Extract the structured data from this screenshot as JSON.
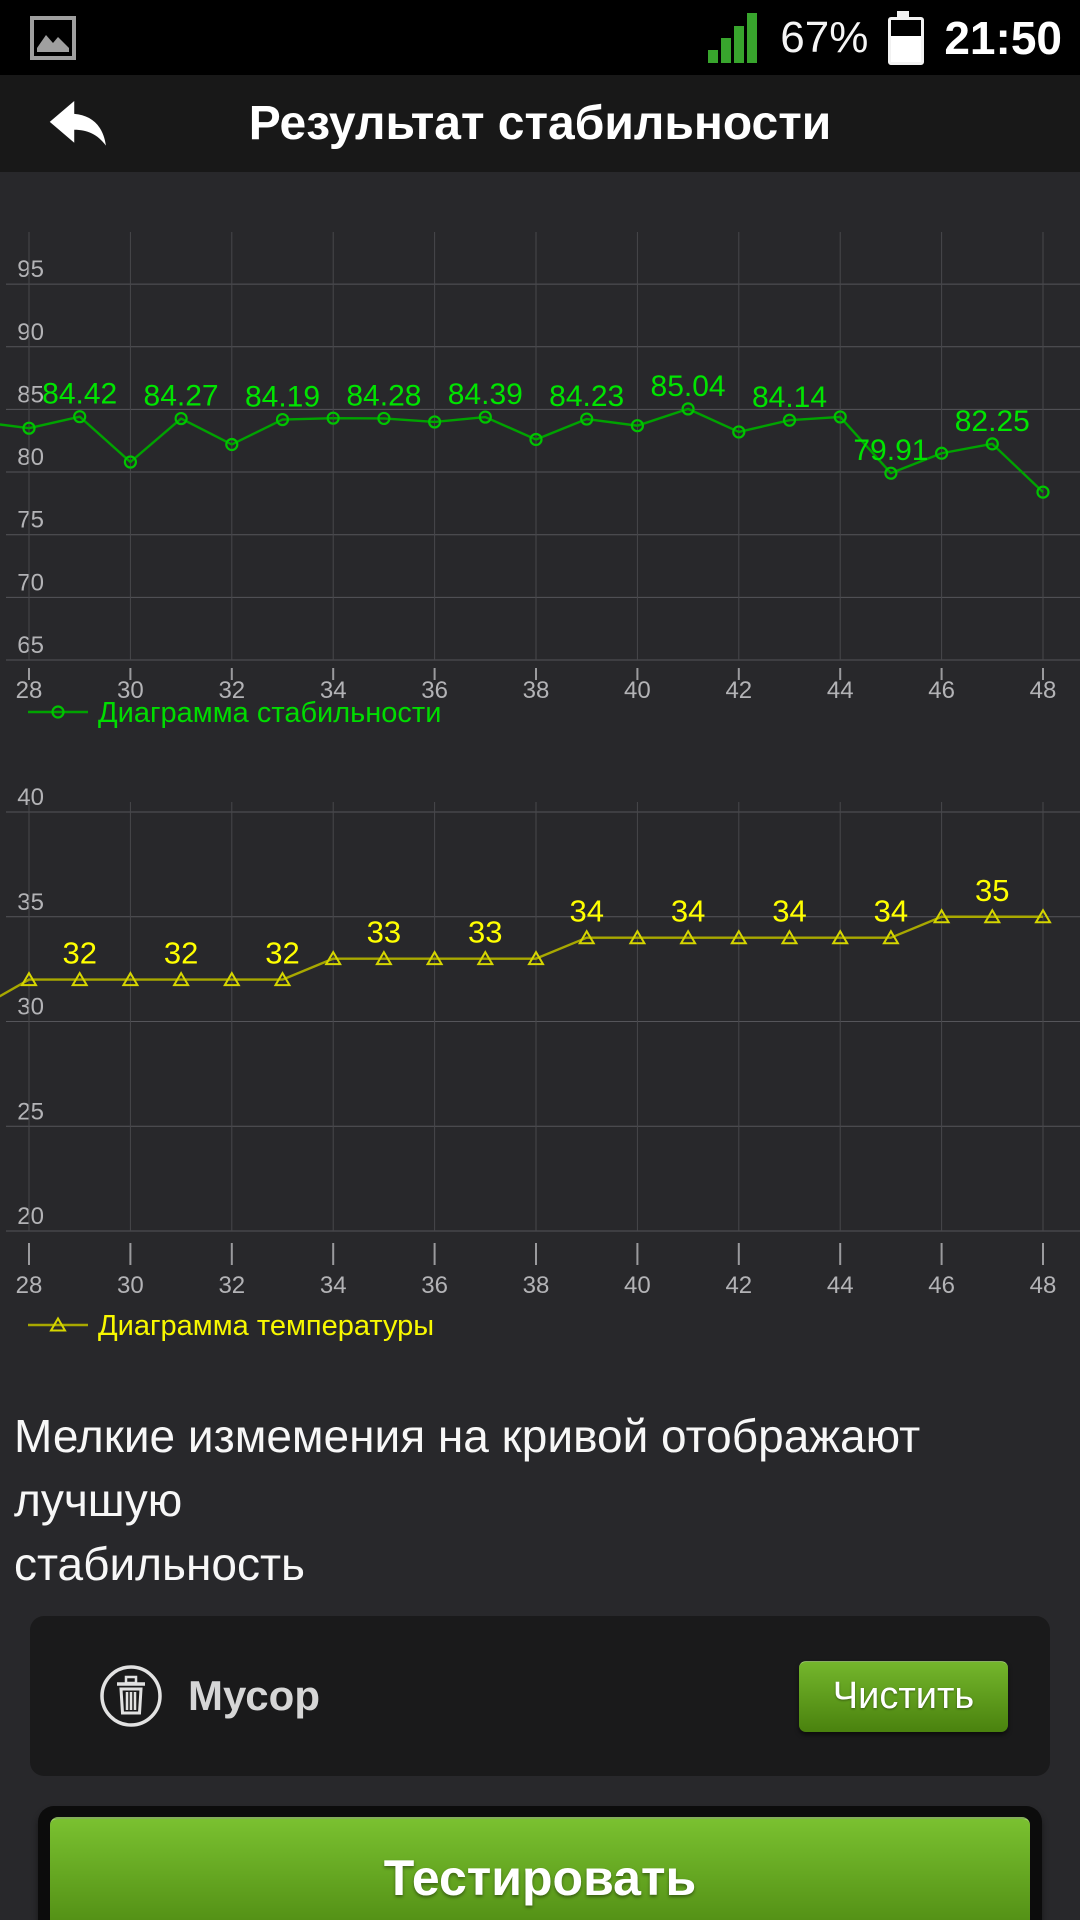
{
  "status_bar": {
    "time": "21:50",
    "battery_percent": "67%",
    "signal_color": "#38a52d",
    "icons": [
      "gallery-icon",
      "signal-strength-icon",
      "battery-icon"
    ]
  },
  "header": {
    "title": "Результат стабильности"
  },
  "chart_data": [
    {
      "type": "line",
      "legend": "Диаграмма стабильности",
      "x": [
        28,
        29,
        30,
        31,
        32,
        33,
        34,
        35,
        36,
        37,
        38,
        39,
        40,
        41,
        42,
        43,
        44,
        45,
        46,
        47,
        48
      ],
      "values": [
        83.5,
        84.42,
        80.8,
        84.27,
        82.2,
        84.19,
        84.3,
        84.28,
        84.0,
        84.39,
        82.6,
        84.23,
        83.7,
        85.04,
        83.2,
        84.14,
        84.4,
        79.91,
        81.5,
        82.25,
        78.4
      ],
      "point_labels": [
        null,
        "84.42",
        null,
        "84.27",
        null,
        "84.19",
        null,
        "84.28",
        null,
        "84.39",
        null,
        "84.23",
        null,
        "85.04",
        null,
        "84.14",
        null,
        "79.91",
        null,
        "82.25",
        null
      ],
      "edge_point": {
        "x": 27.42,
        "v": 83.8
      },
      "xticks": [
        28,
        30,
        32,
        34,
        36,
        38,
        40,
        42,
        44,
        46,
        48
      ],
      "yticks": [
        95,
        90,
        85,
        80,
        75,
        70,
        65
      ],
      "xlim": [
        28,
        48
      ],
      "ylim": [
        65,
        95
      ],
      "marker": "circle",
      "grid": true,
      "legend_position": "bottom-left",
      "line_color": "#00a300",
      "marker_color": "#00c400",
      "label_color": "#00e400",
      "legend_color": "#00dc00"
    },
    {
      "type": "line",
      "legend": "Диаграмма температуры",
      "x": [
        28,
        29,
        30,
        31,
        32,
        33,
        34,
        35,
        36,
        37,
        38,
        39,
        40,
        41,
        42,
        43,
        44,
        45,
        46,
        47,
        48
      ],
      "values": [
        32,
        32,
        32,
        32,
        32,
        32,
        33,
        33,
        33,
        33,
        33,
        34,
        34,
        34,
        34,
        34,
        34,
        34,
        35,
        35,
        35
      ],
      "point_labels": [
        null,
        "32",
        null,
        "32",
        null,
        "32",
        null,
        "33",
        null,
        "33",
        null,
        "34",
        null,
        "34",
        null,
        "34",
        null,
        "34",
        null,
        "35",
        null
      ],
      "edge_point": {
        "x": 27.42,
        "v": 31.2
      },
      "xticks": [
        28,
        30,
        32,
        34,
        36,
        38,
        40,
        42,
        44,
        46,
        48
      ],
      "yticks": [
        40,
        35,
        30,
        25,
        20
      ],
      "xlim": [
        28,
        48
      ],
      "ylim": [
        20,
        40
      ],
      "marker": "triangle",
      "grid": true,
      "legend_position": "bottom-left",
      "line_color": "#a8a800",
      "marker_color": "#d6d600",
      "label_color": "#ffff00",
      "legend_color": "#f8f800"
    }
  ],
  "note": {
    "lines": [
      "Мелкие измемения на кривой отображают лучшую",
      "стабильность"
    ]
  },
  "trash_panel": {
    "label": "Мусор",
    "button_label": "Чистить"
  },
  "test_button": {
    "label": "Тестировать"
  },
  "colors": {
    "background": "#28282b",
    "panel": "#1a1a1b",
    "accent_green_top": "#7ac130",
    "accent_green_bottom": "#4e8a12"
  }
}
